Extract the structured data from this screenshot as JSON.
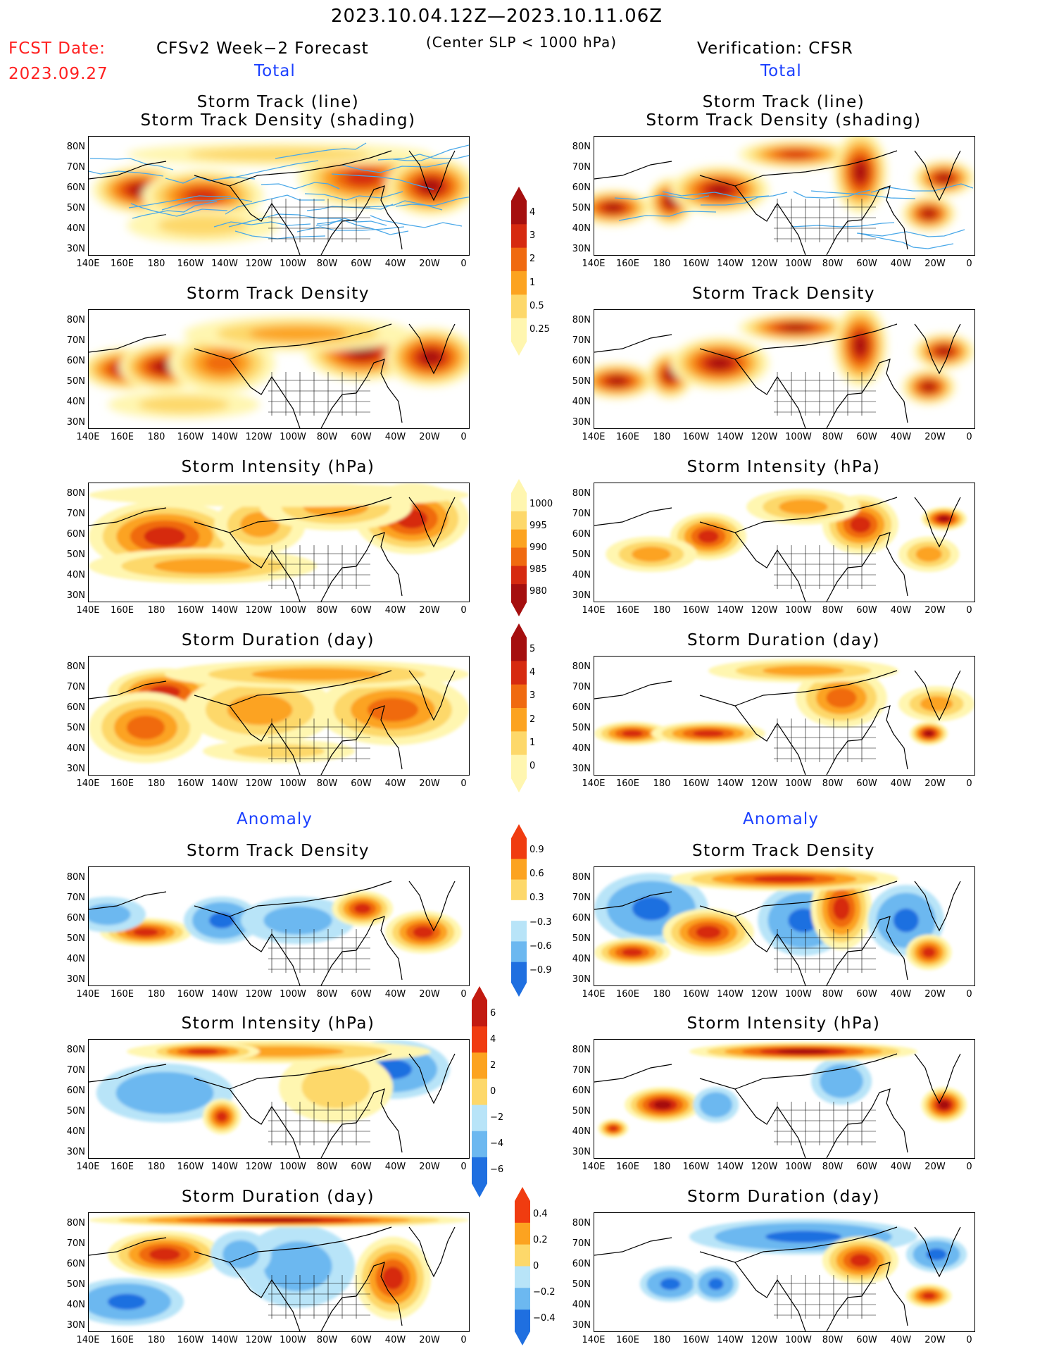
{
  "header": {
    "date_range": "2023.10.04.12Z—2023.10.11.06Z",
    "fcst_label": "FCST Date:",
    "fcst_date": "2023.09.27",
    "left_title": "CFSv2 Week−2 Forecast",
    "center_sub": "(Center SLP < 1000 hPa)",
    "right_title": "Verification: CFSR"
  },
  "sections": {
    "total": "Total",
    "anomaly": "Anomaly"
  },
  "panel_titles": {
    "track_line": "Storm Track (line)",
    "track_shading": "Storm Track Density (shading)",
    "density": "Storm Track Density",
    "intensity": "Storm Intensity (hPa)",
    "duration": "Storm Duration (day)"
  },
  "axes": {
    "lat": [
      "80N",
      "70N",
      "60N",
      "50N",
      "40N",
      "30N"
    ],
    "lon": [
      "140E",
      "160E",
      "180",
      "160W",
      "140W",
      "120W",
      "100W",
      "80W",
      "60W",
      "40W",
      "20W",
      "0"
    ]
  },
  "colorbars": [
    {
      "name": "density-total",
      "labels": [
        "4",
        "3",
        "2",
        "1",
        "0.5",
        "0.25"
      ],
      "colors": [
        "#a50f0f",
        "#d62a10",
        "#f06a10",
        "#fca320",
        "#fdd86a",
        "#fff6b0"
      ]
    },
    {
      "name": "intensity-total",
      "labels": [
        "1000",
        "995",
        "990",
        "985",
        "980"
      ],
      "colors": [
        "#fff6b0",
        "#fdd86a",
        "#fca320",
        "#f06a10",
        "#d62a10",
        "#a50f0f"
      ]
    },
    {
      "name": "duration-total",
      "labels": [
        "5",
        "4",
        "3",
        "2",
        "1",
        "0"
      ],
      "colors": [
        "#a50f0f",
        "#d62a10",
        "#f06a10",
        "#fca320",
        "#fdd86a",
        "#fff6b0"
      ]
    },
    {
      "name": "density-anom",
      "labels": [
        "0.9",
        "0.6",
        "0.3",
        "−0.3",
        "−0.6",
        "−0.9"
      ],
      "colors": [
        "#f03c10",
        "#fca320",
        "#fdd86a",
        "#ffffff",
        "#b8e4f8",
        "#6cb8f0",
        "#1f6fe0"
      ]
    },
    {
      "name": "intensity-anom",
      "labels": [
        "6",
        "4",
        "2",
        "0",
        "−2",
        "−4",
        "−6"
      ],
      "colors": [
        "#c21a10",
        "#f03c10",
        "#fca320",
        "#fdd86a",
        "#b8e4f8",
        "#6cb8f0",
        "#1f6fe0"
      ]
    },
    {
      "name": "duration-anom",
      "labels": [
        "0.4",
        "0.2",
        "0",
        "−0.2",
        "−0.4"
      ],
      "colors": [
        "#f03c10",
        "#fca320",
        "#fdd86a",
        "#b8e4f8",
        "#6cb8f0",
        "#1f6fe0"
      ]
    }
  ],
  "colors": {
    "warm": [
      "#fff6b0",
      "#fdd86a",
      "#fca320",
      "#f06a10",
      "#d62a10",
      "#a50f0f"
    ],
    "cool": [
      "#b8e4f8",
      "#6cb8f0",
      "#1f6fe0"
    ],
    "track": "#4aa8e8",
    "track_dark": "#6a5acd"
  }
}
